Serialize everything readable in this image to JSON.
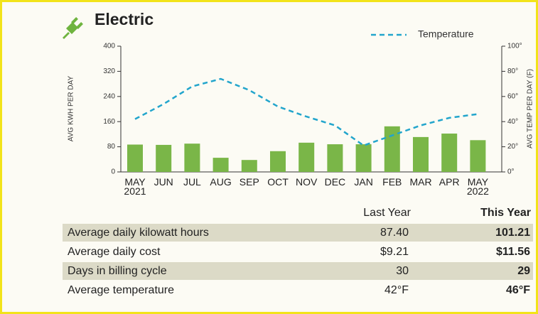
{
  "title": "Electric",
  "chart_data": {
    "type": "bar",
    "categories": [
      "MAY 2021",
      "JUN",
      "JUL",
      "AUG",
      "SEP",
      "OCT",
      "NOV",
      "DEC",
      "JAN",
      "FEB",
      "MAR",
      "APR",
      "MAY 2022"
    ],
    "ylabel": "AVG KWH PER DAY",
    "y2label": "AVG TEMP PER DAY (F)",
    "ylim": [
      0,
      400
    ],
    "yticks": [
      0,
      80,
      160,
      240,
      320,
      400
    ],
    "y2lim": [
      0,
      100
    ],
    "y2ticks": [
      {
        "value": 0,
        "label": "0°"
      },
      {
        "value": 20,
        "label": "20°"
      },
      {
        "value": 40,
        "label": "40°"
      },
      {
        "value": 60,
        "label": "60°"
      },
      {
        "value": 80,
        "label": "80°"
      },
      {
        "value": 100,
        "label": "100°"
      }
    ],
    "legend": "upper right",
    "series": [
      {
        "type": "bar",
        "color": "#7ab648",
        "values": [
          87,
          86,
          90,
          45,
          38,
          66,
          93,
          88,
          88,
          145,
          111,
          122,
          101
        ]
      },
      {
        "type": "line",
        "name": "Temperature",
        "color": "#22a5cc",
        "axis": "y2",
        "values": [
          42,
          54,
          68,
          74,
          65,
          52,
          44,
          37,
          21,
          29,
          37,
          43,
          46
        ]
      }
    ]
  },
  "table": {
    "columns": [
      "Last Year",
      "This Year"
    ],
    "rows": [
      [
        "Average daily kilowatt hours",
        "87.40",
        "101.21"
      ],
      [
        "Average daily cost",
        "$9.21",
        "$11.56"
      ],
      [
        "Days in billing cycle",
        "30",
        "29"
      ],
      [
        "Average temperature",
        "42°F",
        "46°F"
      ]
    ]
  }
}
